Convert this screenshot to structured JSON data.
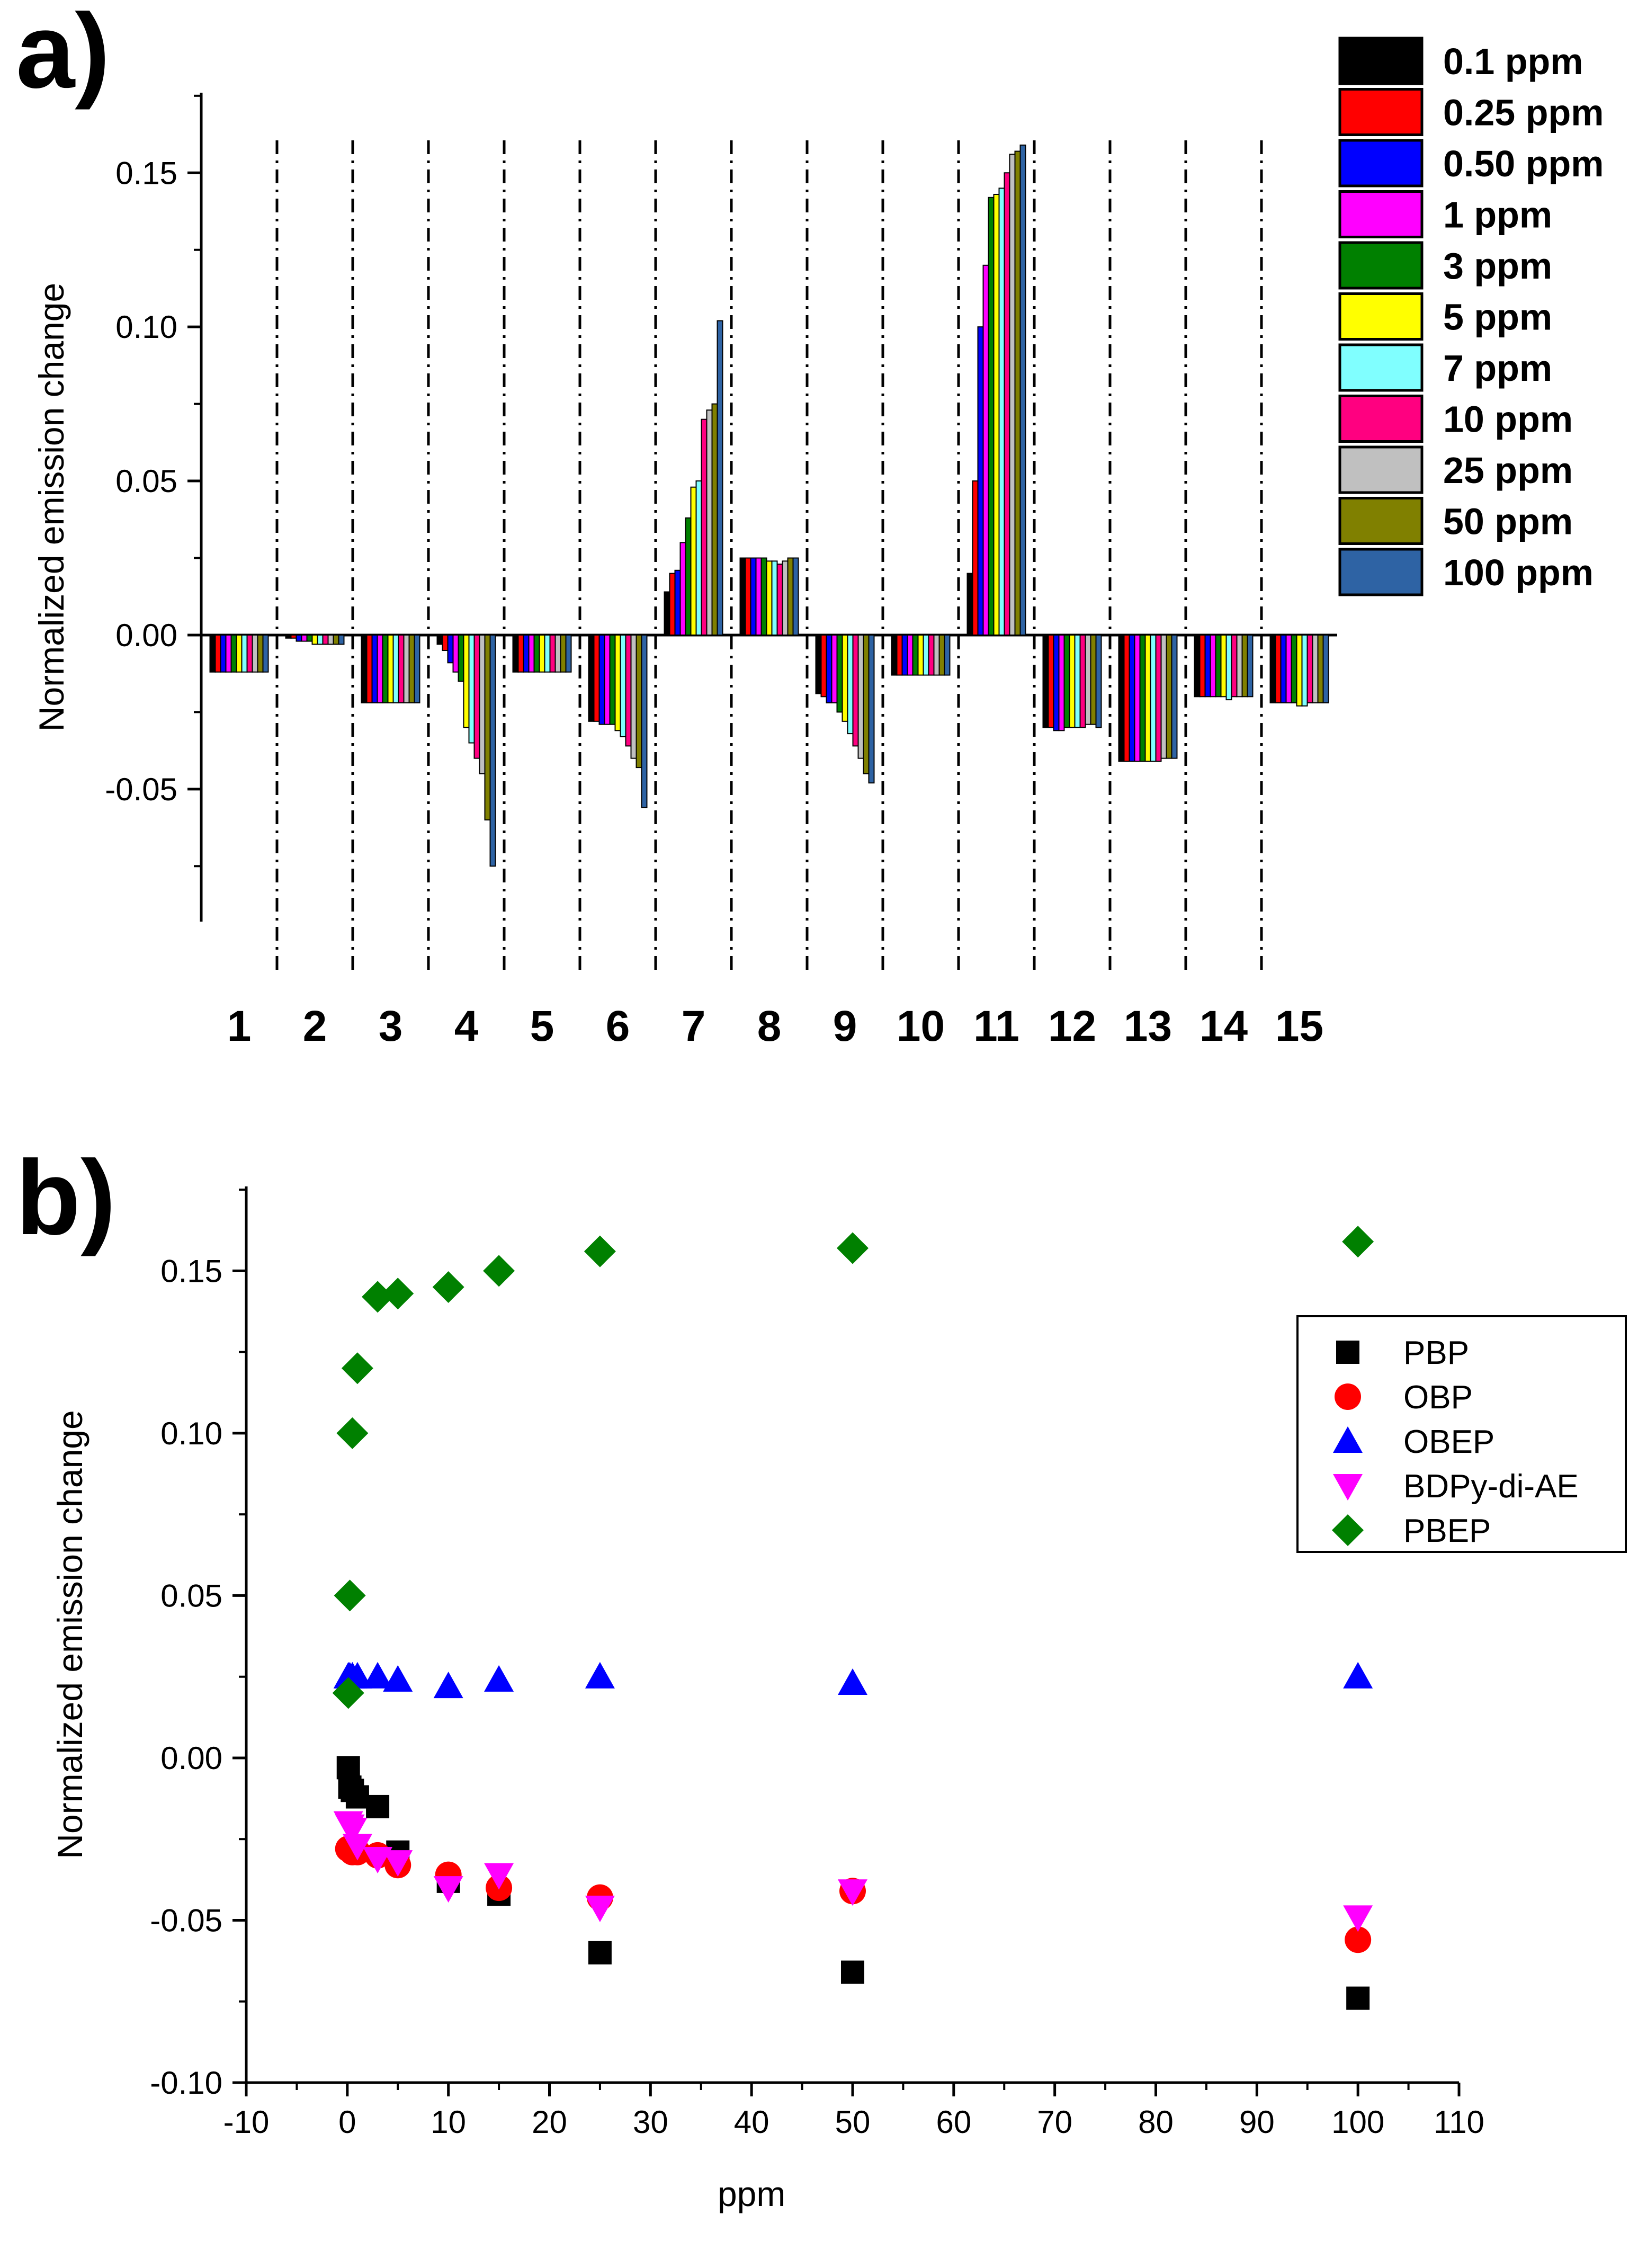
{
  "panel_labels": {
    "a": "a)",
    "b": "b)"
  },
  "chart_data": [
    {
      "type": "bar",
      "panel": "a)",
      "title": "",
      "xlabel": "",
      "ylabel": "Normalized emission change",
      "ylim": [
        -0.093,
        0.176
      ],
      "yticks": [
        "0.15",
        "0.10",
        "0.05",
        "0.00",
        "-0.05"
      ],
      "grid": false,
      "legend_position": "top-right",
      "categories": [
        "1",
        "2",
        "3",
        "4",
        "5",
        "6",
        "7",
        "8",
        "9",
        "10",
        "11",
        "12",
        "13",
        "14",
        "15"
      ],
      "series": [
        {
          "name": "0.1 ppm",
          "color": "#000000",
          "values": [
            -0.012,
            -0.001,
            -0.022,
            -0.003,
            -0.012,
            -0.028,
            0.014,
            0.025,
            -0.019,
            -0.013,
            0.02,
            -0.03,
            -0.041,
            -0.02,
            -0.022
          ]
        },
        {
          "name": "0.25 ppm",
          "color": "#ff0000",
          "values": [
            -0.012,
            -0.001,
            -0.022,
            -0.005,
            -0.012,
            -0.028,
            0.02,
            0.025,
            -0.02,
            -0.013,
            0.05,
            -0.03,
            -0.041,
            -0.02,
            -0.022
          ]
        },
        {
          "name": "0.50 ppm",
          "color": "#0000ff",
          "values": [
            -0.012,
            -0.002,
            -0.022,
            -0.009,
            -0.012,
            -0.029,
            0.021,
            0.025,
            -0.022,
            -0.013,
            0.1,
            -0.031,
            -0.041,
            -0.02,
            -0.022
          ]
        },
        {
          "name": "1 ppm",
          "color": "#ff00ff",
          "values": [
            -0.012,
            -0.002,
            -0.022,
            -0.012,
            -0.012,
            -0.029,
            0.03,
            0.025,
            -0.022,
            -0.013,
            0.12,
            -0.031,
            -0.041,
            -0.02,
            -0.022
          ]
        },
        {
          "name": "3 ppm",
          "color": "#008000",
          "values": [
            -0.012,
            -0.002,
            -0.022,
            -0.015,
            -0.012,
            -0.029,
            0.038,
            0.025,
            -0.025,
            -0.013,
            0.142,
            -0.03,
            -0.041,
            -0.02,
            -0.022
          ]
        },
        {
          "name": "5 ppm",
          "color": "#ffff00",
          "values": [
            -0.012,
            -0.003,
            -0.022,
            -0.03,
            -0.012,
            -0.031,
            0.048,
            0.024,
            -0.028,
            -0.013,
            0.143,
            -0.03,
            -0.041,
            -0.02,
            -0.023
          ]
        },
        {
          "name": "7 ppm",
          "color": "#80ffff",
          "values": [
            -0.012,
            -0.003,
            -0.022,
            -0.035,
            -0.012,
            -0.033,
            0.05,
            0.024,
            -0.032,
            -0.013,
            0.145,
            -0.03,
            -0.041,
            -0.021,
            -0.023
          ]
        },
        {
          "name": "10 ppm",
          "color": "#ff0080",
          "values": [
            -0.012,
            -0.003,
            -0.022,
            -0.04,
            -0.012,
            -0.036,
            0.07,
            0.023,
            -0.036,
            -0.013,
            0.15,
            -0.03,
            -0.041,
            -0.02,
            -0.022
          ]
        },
        {
          "name": "25 ppm",
          "color": "#c0c0c0",
          "values": [
            -0.012,
            -0.003,
            -0.022,
            -0.045,
            -0.012,
            -0.04,
            0.073,
            0.024,
            -0.04,
            -0.013,
            0.156,
            -0.029,
            -0.04,
            -0.02,
            -0.022
          ]
        },
        {
          "name": "50 ppm",
          "color": "#808000",
          "values": [
            -0.012,
            -0.003,
            -0.022,
            -0.06,
            -0.012,
            -0.043,
            0.075,
            0.025,
            -0.045,
            -0.013,
            0.157,
            -0.029,
            -0.04,
            -0.02,
            -0.022
          ]
        },
        {
          "name": "100 ppm",
          "color": "#2e63a4",
          "values": [
            -0.012,
            -0.003,
            -0.022,
            -0.075,
            -0.012,
            -0.056,
            0.102,
            0.025,
            -0.048,
            -0.013,
            0.159,
            -0.03,
            -0.04,
            -0.02,
            -0.022
          ]
        }
      ]
    },
    {
      "type": "scatter",
      "panel": "b)",
      "title": "",
      "xlabel": "ppm",
      "ylabel": "Normalized emission change",
      "xlim": [
        -10,
        110
      ],
      "ylim": [
        -0.1,
        0.176
      ],
      "xticks": [
        -10,
        0,
        10,
        20,
        30,
        40,
        50,
        60,
        70,
        80,
        90,
        100,
        110
      ],
      "yticks": [
        "0.15",
        "0.10",
        "0.05",
        "0.00",
        "-0.05",
        "-0.10"
      ],
      "grid": false,
      "legend_position": "right",
      "x": [
        0.1,
        0.25,
        0.5,
        1,
        3,
        5,
        10,
        15,
        25,
        50,
        100
      ],
      "series": [
        {
          "name": "PBP",
          "marker": "square",
          "color": "#000000",
          "values": [
            -0.003,
            -0.009,
            -0.01,
            -0.012,
            -0.015,
            -0.029,
            -0.038,
            -0.042,
            -0.06,
            -0.066,
            -0.074
          ]
        },
        {
          "name": "OBP",
          "marker": "circle",
          "color": "#ff0000",
          "values": [
            -0.028,
            -0.028,
            -0.029,
            -0.029,
            -0.03,
            -0.033,
            -0.036,
            -0.04,
            -0.043,
            -0.041,
            -0.056
          ]
        },
        {
          "name": "OBEP",
          "marker": "triangle-up",
          "color": "#0000ff",
          "values": [
            0.025,
            0.025,
            0.025,
            0.025,
            0.025,
            0.024,
            0.022,
            0.024,
            0.025,
            0.023,
            0.025
          ]
        },
        {
          "name": "BDPy-di-AE",
          "marker": "triangle-down",
          "color": "#ff00ff",
          "values": [
            -0.02,
            -0.021,
            -0.022,
            -0.027,
            -0.031,
            -0.032,
            -0.04,
            -0.036,
            -0.046,
            -0.041,
            -0.049
          ]
        },
        {
          "name": "PBEP",
          "marker": "diamond",
          "color": "#008000",
          "values": [
            0.02,
            0.05,
            0.1,
            0.12,
            0.142,
            0.143,
            0.145,
            0.15,
            0.156,
            0.157,
            0.159
          ]
        }
      ]
    }
  ]
}
